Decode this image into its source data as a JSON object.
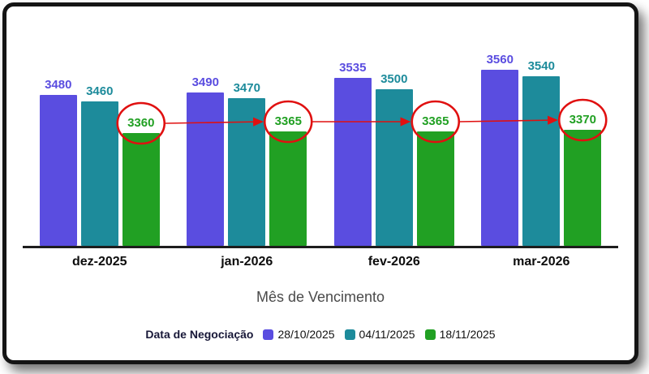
{
  "chart_data": {
    "type": "bar",
    "title": "",
    "xlabel": "Mês de Vencimento",
    "ylabel": "",
    "legend_title": "Data de Negociação",
    "legend_position": "bottom",
    "grid": false,
    "categories": [
      "dez-2025",
      "jan-2026",
      "fev-2026",
      "mar-2026"
    ],
    "series": [
      {
        "name": "28/10/2025",
        "color": "#5a4de0",
        "values": [
          3480,
          3490,
          3535,
          3560
        ]
      },
      {
        "name": "04/11/2025",
        "color": "#1d8b9b",
        "values": [
          3460,
          3470,
          3500,
          3540
        ]
      },
      {
        "name": "18/11/2025",
        "color": "#21a023",
        "values": [
          3360,
          3365,
          3365,
          3370
        ]
      }
    ],
    "ylim": [
      3000,
      3600
    ],
    "annotations": {
      "highlighted_series": "18/11/2025",
      "circled_values": [
        3360,
        3365,
        3365,
        3370
      ],
      "style": "red circles around green-series value labels connected by right-pointing arrows",
      "color": "#e01010"
    }
  }
}
